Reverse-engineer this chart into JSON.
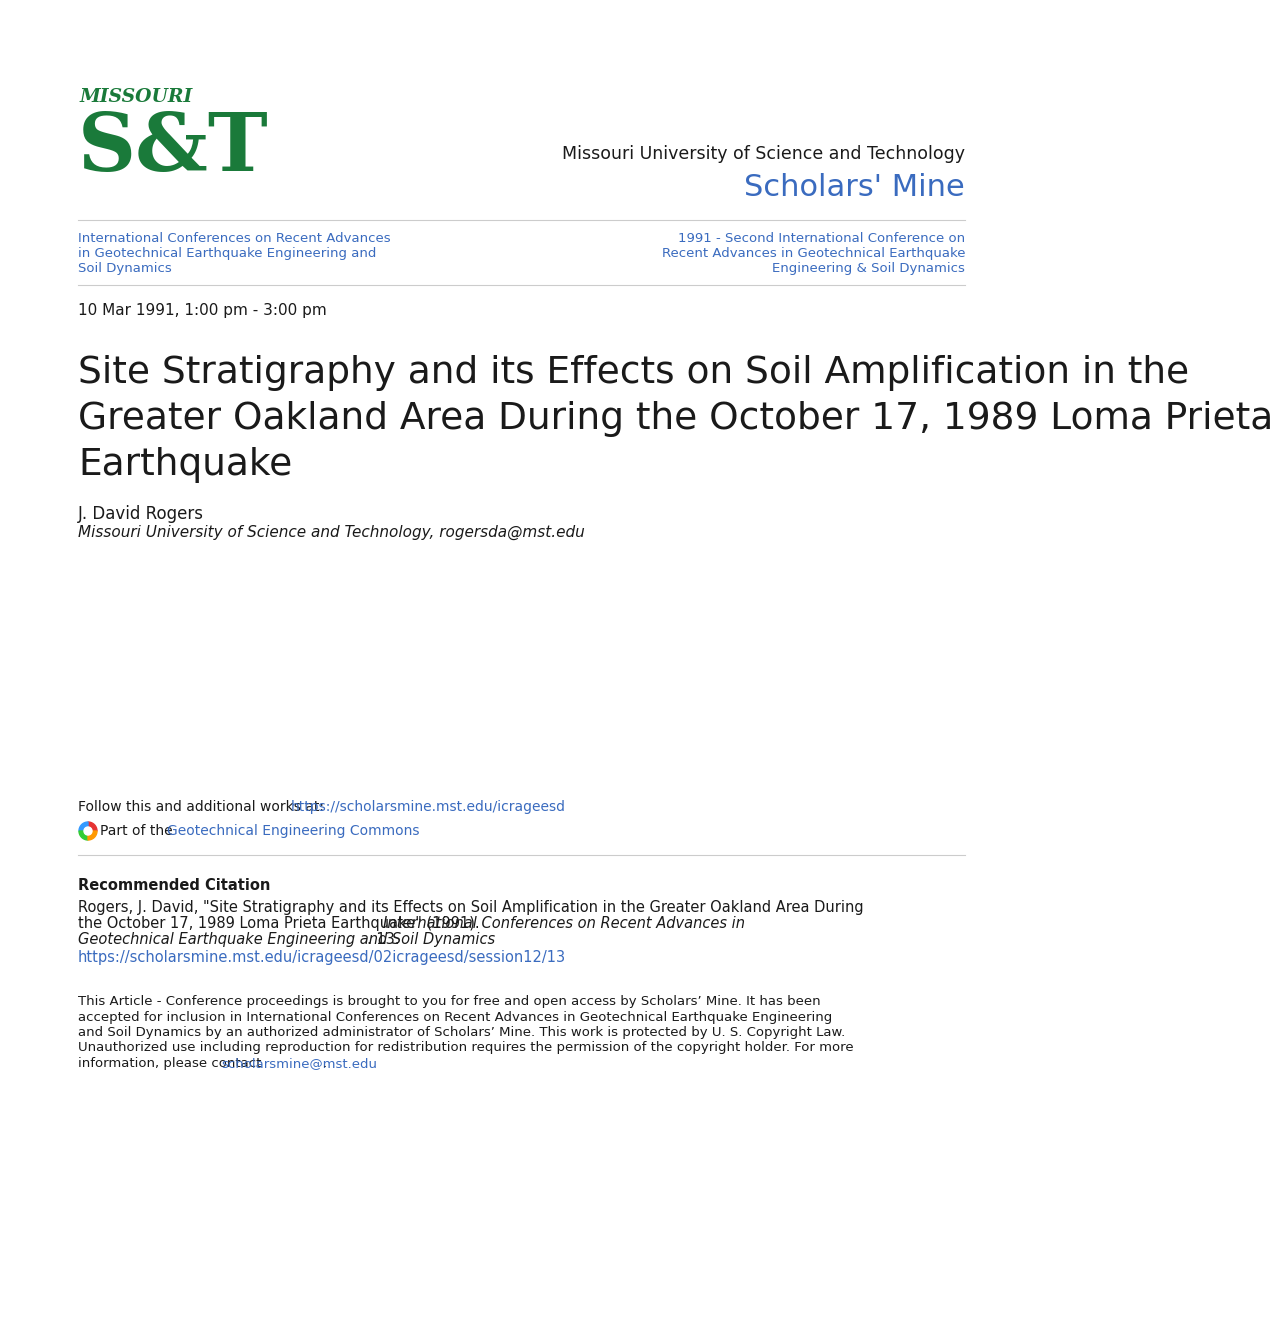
{
  "bg_color": "#ffffff",
  "logo_color": "#1a7a3a",
  "logo_text_missouri": "MISSOURI",
  "logo_text_st": "S&T",
  "university_name": "Missouri University of Science and Technology",
  "scholars_mine": "Scholars' Mine",
  "scholars_mine_color": "#3a6bbf",
  "link_color": "#3a6bbf",
  "link1_line1": "International Conferences on Recent Advances",
  "link1_line2": "in Geotechnical Earthquake Engineering and",
  "link1_line3": "Soil Dynamics",
  "link2_line1": "1991 - Second International Conference on",
  "link2_line2": "Recent Advances in Geotechnical Earthquake",
  "link2_line3": "Engineering & Soil Dynamics",
  "date_text": "10 Mar 1991, 1:00 pm - 3:00 pm",
  "main_title_line1": "Site Stratigraphy and its Effects on Soil Amplification in the",
  "main_title_line2": "Greater Oakland Area During the October 17, 1989 Loma Prieta",
  "main_title_line3": "Earthquake",
  "author_name": "J. David Rogers",
  "author_affiliation": "Missouri University of Science and Technology",
  "author_email": "rogersda@mst.edu",
  "follow_text": "Follow this and additional works at: ",
  "follow_url": "https://scholarsmine.mst.edu/icrageesd",
  "commons_icon_colors": [
    "#e63333",
    "#3399ff",
    "#33cc33",
    "#ff9900"
  ],
  "part_of_text": "Part of the ",
  "part_of_link": "Geotechnical Engineering Commons",
  "recommended_citation_header": "Recommended Citation",
  "rec_body1": "Rogers, J. David, \"Site Stratigraphy and its Effects on Soil Amplification in the Greater Oakland Area During the October 17, 1989 Loma Prieta Earthquake\" (1991). ",
  "rec_body1_line1": "Rogers, J. David, \"Site Stratigraphy and its Effects on Soil Amplification in the Greater Oakland Area During",
  "rec_body1_line2": "the October 17, 1989 Loma Prieta Earthquake\" (1991). ",
  "rec_italic": "International Conferences on Recent Advances in Geotechnical Earthquake Engineering and Soil Dynamics",
  "rec_end": ". 13.",
  "recommended_citation_url": "https://scholarsmine.mst.edu/icrageesd/02icrageesd/session12/13",
  "notice_line1": "This Article - Conference proceedings is brought to you for free and open access by Scholars’ Mine. It has been",
  "notice_line2": "accepted for inclusion in International Conferences on Recent Advances in Geotechnical Earthquake Engineering",
  "notice_line3": "and Soil Dynamics by an authorized administrator of Scholars’ Mine. This work is protected by U. S. Copyright Law.",
  "notice_line4": "Unauthorized use including reproduction for redistribution requires the permission of the copyright holder. For more",
  "notice_line5_pre": "information, please contact ",
  "contact_email": "scholarsmine@mst.edu",
  "contact_period": "."
}
